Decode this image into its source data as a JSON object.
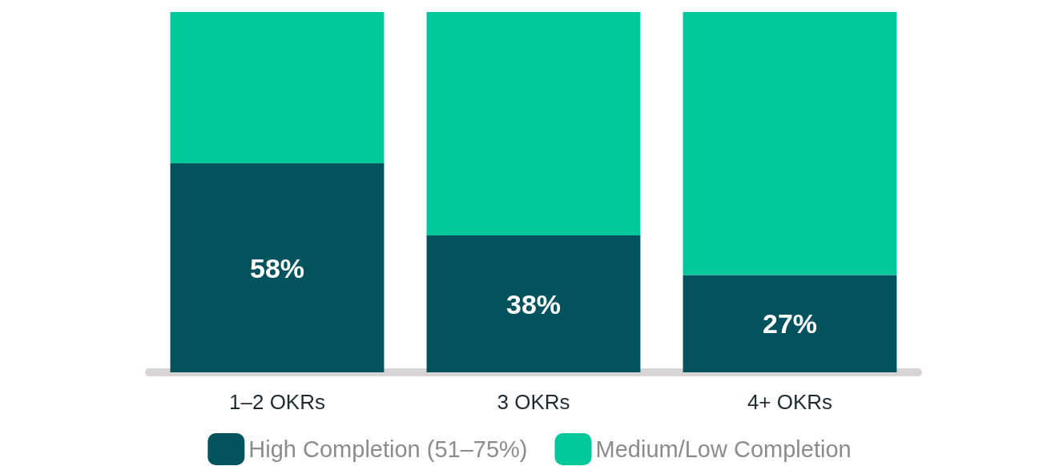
{
  "chart_data": {
    "type": "bar",
    "stacked": true,
    "categories": [
      "1–2 OKRs",
      "3 OKRs",
      "4+ OKRs"
    ],
    "series": [
      {
        "name": "High Completion (51–75%)",
        "color": "#03535f",
        "values": [
          58,
          38,
          27
        ],
        "value_labels": [
          "58%",
          "38%",
          "27%"
        ]
      },
      {
        "name": "Medium/Low Completion",
        "color": "#00c89b",
        "values": [
          42,
          62,
          73
        ]
      }
    ],
    "ylim": [
      0,
      100
    ],
    "tick_labels": "x",
    "legend": "bottom"
  }
}
